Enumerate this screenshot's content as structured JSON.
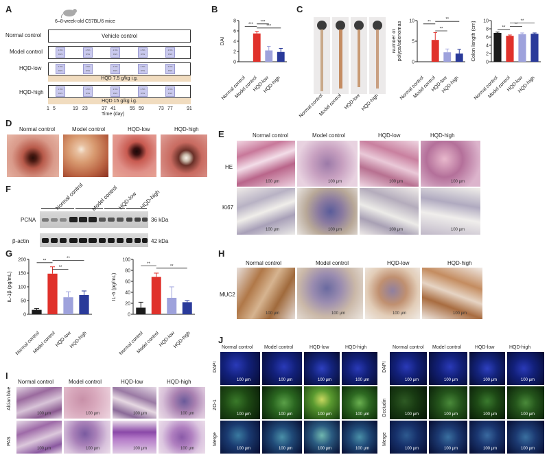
{
  "panels": {
    "A": "A",
    "B": "B",
    "C": "C",
    "D": "D",
    "E": "E",
    "F": "F",
    "G": "G",
    "H": "H",
    "I": "I",
    "J": "J"
  },
  "groups": [
    "Normal control",
    "Model control",
    "HQD-low",
    "HQD-high"
  ],
  "panelA": {
    "mice": "6–8-week-old C57BL/6 mice",
    "rows": [
      "Normal control",
      "Model control",
      "HQD-low",
      "HQD-high"
    ],
    "vehicle": "Vehicle control",
    "dose_text": "2.5% DSS",
    "hqd_low": "HQD 7.5 g/kg i.g.",
    "hqd_high": "HQD 15 g/kg i.g.",
    "ticks": [
      "1",
      "5",
      "19",
      "23",
      "37",
      "41",
      "55",
      "59",
      "73",
      "77",
      "91"
    ],
    "xlabel": "Time (day)"
  },
  "sig": {
    "s2": "**",
    "s3": "***"
  },
  "panelE": {
    "rows": [
      "HE",
      "Ki67"
    ],
    "scale": "100 μm"
  },
  "panelF": {
    "bands": [
      "PCNA",
      "β-actin"
    ],
    "kda": [
      "36 kDa",
      "42 kDa"
    ]
  },
  "panelH": {
    "row": "MUC2",
    "scale": "100 μm"
  },
  "panelI": {
    "rows": [
      "Alcian blue",
      "PAS"
    ],
    "scale": "100 μm"
  },
  "panelJ": {
    "rows_left": [
      "DAPI",
      "ZO-1",
      "Merge"
    ],
    "rows_right": [
      "DAPI",
      "Occludin",
      "Merge"
    ],
    "scale": "100 μm"
  },
  "colors": {
    "normal": "#1a1a1a",
    "model": "#e0312b",
    "low": "#9ea2dc",
    "high": "#2a3a9a"
  },
  "chart_data": [
    {
      "type": "bar",
      "panel": "B",
      "ylabel": "DAI",
      "categories": [
        "Normal control",
        "Model control",
        "HQD-low",
        "HQD-high"
      ],
      "values": [
        0,
        5.5,
        2.2,
        1.9
      ],
      "errors": [
        0,
        0.4,
        0.8,
        0.7
      ],
      "ylim": [
        0,
        8
      ],
      "yticks": [
        "0",
        "2",
        "4",
        "6",
        "8"
      ]
    },
    {
      "type": "bar",
      "panel": "C1",
      "ylabel": "Number of polyps/adenomas",
      "categories": [
        "Normal control",
        "Model control",
        "HQD-low",
        "HQD-high"
      ],
      "values": [
        0,
        5.3,
        2.3,
        2.0
      ],
      "errors": [
        0,
        1.8,
        0.8,
        1.0
      ],
      "ylim": [
        0,
        10
      ],
      "yticks": [
        "0",
        "5",
        "10"
      ]
    },
    {
      "type": "bar",
      "panel": "C2",
      "ylabel": "Colon length (cm)",
      "categories": [
        "Normal control",
        "Model control",
        "HQD-low",
        "HQD-high"
      ],
      "values": [
        7.0,
        6.3,
        6.7,
        6.8
      ],
      "errors": [
        0.2,
        0.2,
        0.3,
        0.2
      ],
      "ylim": [
        0,
        10
      ],
      "yticks": [
        "0",
        "2",
        "4",
        "6",
        "8",
        "10"
      ]
    },
    {
      "type": "bar",
      "panel": "G1",
      "ylabel": "IL-1β (pg/mL)",
      "categories": [
        "Normal control",
        "Model control",
        "HQD-low",
        "HQD-high"
      ],
      "values": [
        16,
        148,
        62,
        70
      ],
      "errors": [
        5,
        25,
        20,
        15
      ],
      "ylim": [
        0,
        200
      ],
      "yticks": [
        "0",
        "50",
        "100",
        "150",
        "200"
      ]
    },
    {
      "type": "bar",
      "panel": "G2",
      "ylabel": "IL-6 (pg/mL)",
      "categories": [
        "Normal control",
        "Model control",
        "HQD-low",
        "HQD-high"
      ],
      "values": [
        12,
        68,
        30,
        22
      ],
      "errors": [
        10,
        7,
        20,
        3
      ],
      "ylim": [
        0,
        100
      ],
      "yticks": [
        "0",
        "20",
        "40",
        "60",
        "80",
        "100"
      ]
    }
  ]
}
